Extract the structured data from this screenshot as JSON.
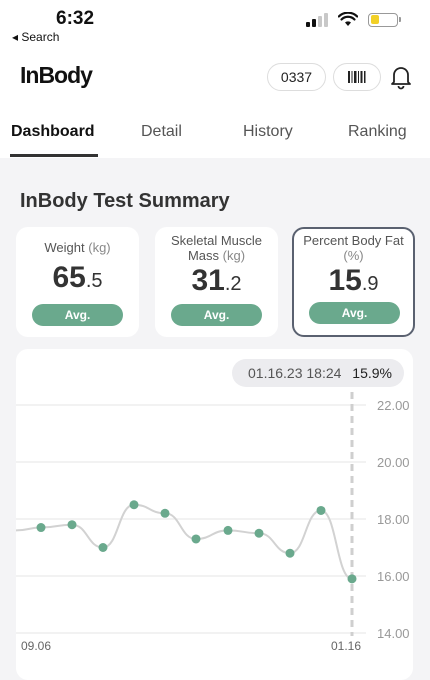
{
  "status": {
    "time": "6:32",
    "back_label": "◂ Search"
  },
  "header": {
    "logo": "InBody",
    "member_id": "0337"
  },
  "tabs": [
    {
      "label": "Dashboard",
      "active": true
    },
    {
      "label": "Detail",
      "active": false
    },
    {
      "label": "History",
      "active": false
    },
    {
      "label": "Ranking",
      "active": false
    }
  ],
  "summary": {
    "title": "InBody Test Summary",
    "cards": [
      {
        "label": "Weight",
        "unit": "(kg)",
        "value_int": "65",
        "value_dec": ".5",
        "button": "Avg."
      },
      {
        "label": "Skeletal Muscle Mass",
        "unit": "(kg)",
        "value_int": "31",
        "value_dec": ".2",
        "button": "Avg."
      },
      {
        "label": "Percent Body Fat",
        "unit": "(%)",
        "value_int": "15",
        "value_dec": ".9",
        "button": "Avg."
      }
    ]
  },
  "tooltip": {
    "date": "01.16.23 18:24",
    "value": "15.9%"
  },
  "chart_data": {
    "type": "line",
    "x_labels": [
      "09.06",
      "01.16"
    ],
    "y_ticks": [
      "22.00",
      "20.00",
      "18.00",
      "16.00",
      "14.00"
    ],
    "ylim": [
      14,
      22
    ],
    "values": [
      17.7,
      17.8,
      17.0,
      18.5,
      18.2,
      17.3,
      17.6,
      17.5,
      16.8,
      18.3,
      15.9
    ],
    "grid": true,
    "accent": "#6aa98d"
  }
}
